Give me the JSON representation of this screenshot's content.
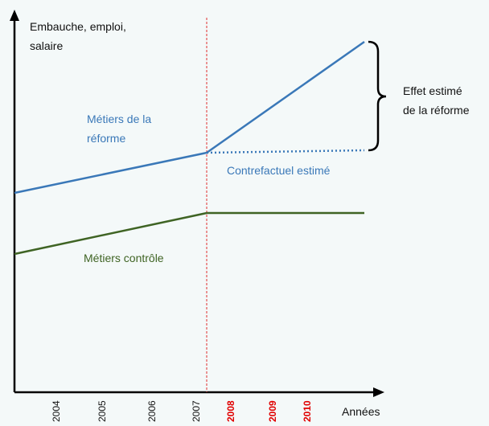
{
  "y_axis_label": [
    "Embauche, emploi,",
    "salaire"
  ],
  "x_axis_label": "Années",
  "years_before": [
    "2004",
    "2005",
    "2006",
    "2007"
  ],
  "years_after": [
    "2008",
    "2009",
    "2010"
  ],
  "treated_label": [
    "Métiers de la",
    "réforme"
  ],
  "counterfactual_label": "Contrefactuel estimé",
  "control_label": "Métiers contrôle",
  "effect_label": [
    "Effet estimé",
    "de la réforme"
  ]
}
